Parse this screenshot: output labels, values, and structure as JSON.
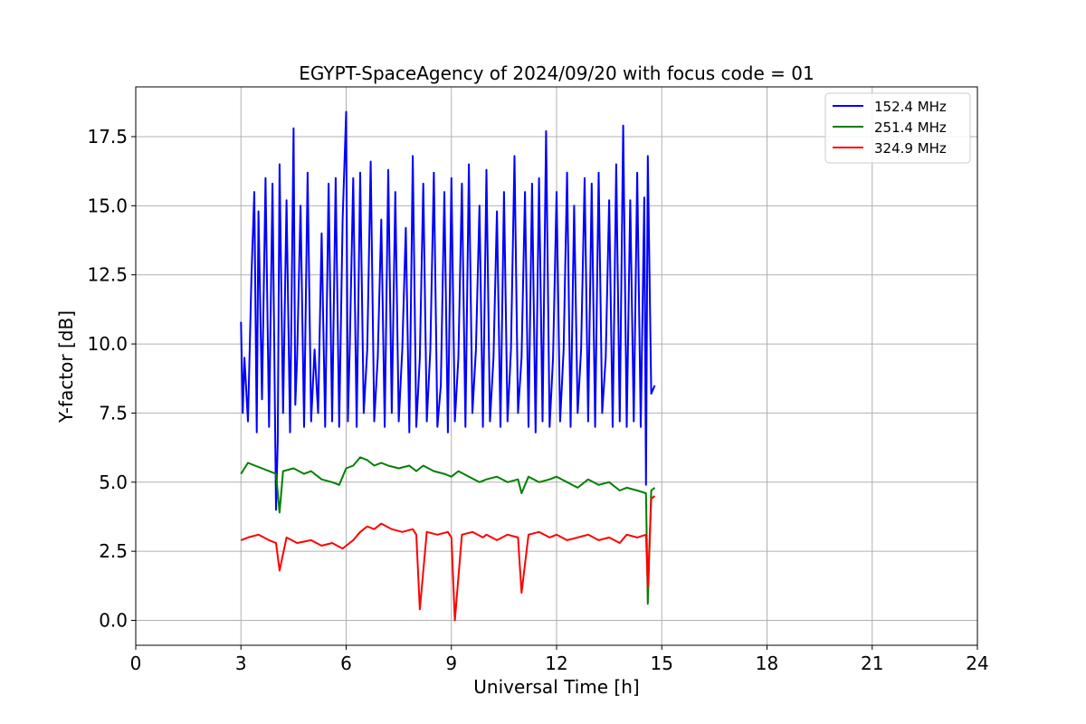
{
  "chart_data": {
    "type": "line",
    "title": "EGYPT-SpaceAgency of 2024/09/20 with focus code = 01",
    "xlabel": "Universal Time [h]",
    "ylabel": "Y-factor [dB]",
    "xlim": [
      0,
      24
    ],
    "ylim": [
      -0.9,
      19.3
    ],
    "xticks": [
      0,
      3,
      6,
      9,
      12,
      15,
      18,
      21,
      24
    ],
    "yticks": [
      0.0,
      2.5,
      5.0,
      7.5,
      10.0,
      12.5,
      15.0,
      17.5
    ],
    "xtick_labels": [
      "0",
      "3",
      "6",
      "9",
      "12",
      "15",
      "18",
      "21",
      "24"
    ],
    "ytick_labels": [
      "0.0",
      "2.5",
      "5.0",
      "7.5",
      "10.0",
      "12.5",
      "15.0",
      "17.5"
    ],
    "grid": true,
    "legend_position": "top-right",
    "series": [
      {
        "name": " 152.4 MHz",
        "color": "#0000ff",
        "x": [
          3.0,
          3.05,
          3.1,
          3.2,
          3.3,
          3.38,
          3.45,
          3.5,
          3.6,
          3.7,
          3.8,
          3.9,
          4.0,
          4.05,
          4.1,
          4.2,
          4.3,
          4.4,
          4.5,
          4.55,
          4.6,
          4.7,
          4.8,
          4.9,
          5.0,
          5.1,
          5.2,
          5.3,
          5.4,
          5.5,
          5.6,
          5.7,
          5.8,
          5.9,
          6.0,
          6.05,
          6.1,
          6.2,
          6.3,
          6.4,
          6.5,
          6.6,
          6.7,
          6.8,
          6.9,
          7.0,
          7.1,
          7.2,
          7.3,
          7.4,
          7.5,
          7.6,
          7.7,
          7.8,
          7.9,
          8.0,
          8.1,
          8.2,
          8.3,
          8.4,
          8.5,
          8.6,
          8.7,
          8.8,
          8.9,
          9.0,
          9.1,
          9.2,
          9.3,
          9.4,
          9.5,
          9.6,
          9.7,
          9.8,
          9.9,
          10.0,
          10.1,
          10.2,
          10.3,
          10.4,
          10.5,
          10.6,
          10.7,
          10.8,
          10.9,
          11.0,
          11.1,
          11.2,
          11.3,
          11.4,
          11.5,
          11.6,
          11.7,
          11.8,
          11.9,
          12.0,
          12.1,
          12.2,
          12.3,
          12.4,
          12.5,
          12.6,
          12.7,
          12.8,
          12.9,
          13.0,
          13.1,
          13.2,
          13.3,
          13.4,
          13.5,
          13.6,
          13.7,
          13.8,
          13.9,
          14.0,
          14.1,
          14.2,
          14.3,
          14.4,
          14.5,
          14.55,
          14.6,
          14.7,
          14.8
        ],
        "values": [
          10.8,
          7.5,
          9.5,
          7.2,
          12.5,
          15.5,
          6.8,
          14.8,
          8.0,
          16.0,
          7.0,
          15.8,
          4.0,
          6.5,
          16.5,
          7.5,
          15.2,
          6.8,
          17.8,
          7.8,
          9.5,
          15.0,
          7.0,
          16.2,
          7.2,
          9.8,
          7.5,
          14.0,
          7.0,
          15.8,
          7.2,
          16.0,
          7.0,
          14.5,
          18.4,
          7.2,
          9.8,
          16.0,
          7.0,
          16.2,
          7.5,
          9.8,
          16.6,
          7.2,
          9.5,
          14.5,
          7.0,
          16.3,
          7.5,
          15.5,
          7.2,
          9.8,
          14.2,
          6.8,
          16.8,
          7.0,
          9.5,
          15.8,
          7.2,
          9.8,
          16.2,
          7.0,
          8.5,
          15.5,
          6.8,
          16.0,
          7.2,
          9.5,
          15.8,
          7.0,
          16.5,
          7.5,
          9.8,
          15.0,
          7.0,
          16.3,
          7.2,
          9.5,
          14.8,
          7.0,
          15.5,
          7.2,
          9.8,
          16.8,
          7.5,
          9.5,
          15.5,
          7.0,
          15.8,
          6.8,
          16.0,
          7.2,
          17.7,
          7.0,
          9.5,
          15.5,
          7.2,
          9.8,
          16.2,
          7.0,
          15.0,
          7.5,
          9.8,
          16.0,
          7.2,
          15.8,
          7.0,
          16.2,
          7.5,
          9.5,
          15.2,
          7.0,
          16.5,
          7.2,
          17.9,
          7.0,
          15.2,
          7.2,
          16.2,
          7.0,
          15.3,
          4.9,
          16.8,
          8.2,
          8.5
        ]
      },
      {
        "name": " 251.4 MHz",
        "color": "#008000",
        "x": [
          3.0,
          3.2,
          3.4,
          3.6,
          3.8,
          4.0,
          4.1,
          4.2,
          4.5,
          4.8,
          5.0,
          5.3,
          5.6,
          5.8,
          6.0,
          6.2,
          6.4,
          6.6,
          6.8,
          7.0,
          7.2,
          7.5,
          7.8,
          8.0,
          8.2,
          8.5,
          8.8,
          9.0,
          9.2,
          9.5,
          9.8,
          10.0,
          10.3,
          10.6,
          10.9,
          11.0,
          11.2,
          11.5,
          11.8,
          12.0,
          12.3,
          12.6,
          12.9,
          13.2,
          13.5,
          13.8,
          14.0,
          14.3,
          14.55,
          14.6,
          14.7,
          14.8
        ],
        "values": [
          5.3,
          5.7,
          5.6,
          5.5,
          5.4,
          5.3,
          3.9,
          5.4,
          5.5,
          5.3,
          5.4,
          5.1,
          5.0,
          4.9,
          5.5,
          5.6,
          5.9,
          5.8,
          5.6,
          5.7,
          5.6,
          5.5,
          5.6,
          5.4,
          5.6,
          5.4,
          5.3,
          5.2,
          5.4,
          5.2,
          5.0,
          5.1,
          5.2,
          5.0,
          5.1,
          4.6,
          5.2,
          5.0,
          5.1,
          5.2,
          5.0,
          4.8,
          5.1,
          4.9,
          5.0,
          4.7,
          4.8,
          4.7,
          4.6,
          0.6,
          4.7,
          4.8
        ]
      },
      {
        "name": " 324.9 MHz",
        "color": "#ff0000",
        "x": [
          3.0,
          3.2,
          3.5,
          3.8,
          4.0,
          4.1,
          4.3,
          4.6,
          5.0,
          5.3,
          5.6,
          5.9,
          6.0,
          6.2,
          6.4,
          6.6,
          6.8,
          7.0,
          7.3,
          7.6,
          7.9,
          8.0,
          8.1,
          8.3,
          8.6,
          8.9,
          9.0,
          9.1,
          9.3,
          9.6,
          9.9,
          10.0,
          10.3,
          10.6,
          10.9,
          11.0,
          11.2,
          11.5,
          11.8,
          12.0,
          12.3,
          12.6,
          12.9,
          13.2,
          13.5,
          13.8,
          14.0,
          14.3,
          14.55,
          14.6,
          14.7,
          14.8
        ],
        "values": [
          2.9,
          3.0,
          3.1,
          2.9,
          2.8,
          1.8,
          3.0,
          2.8,
          2.9,
          2.7,
          2.8,
          2.6,
          2.7,
          2.9,
          3.2,
          3.4,
          3.3,
          3.5,
          3.3,
          3.2,
          3.3,
          3.1,
          0.4,
          3.2,
          3.1,
          3.2,
          3.0,
          0.0,
          3.1,
          3.2,
          3.0,
          3.1,
          2.9,
          3.1,
          3.0,
          1.0,
          3.1,
          3.2,
          3.0,
          3.1,
          2.9,
          3.0,
          3.1,
          2.9,
          3.0,
          2.8,
          3.1,
          3.0,
          3.1,
          1.2,
          4.4,
          4.5
        ]
      }
    ]
  }
}
